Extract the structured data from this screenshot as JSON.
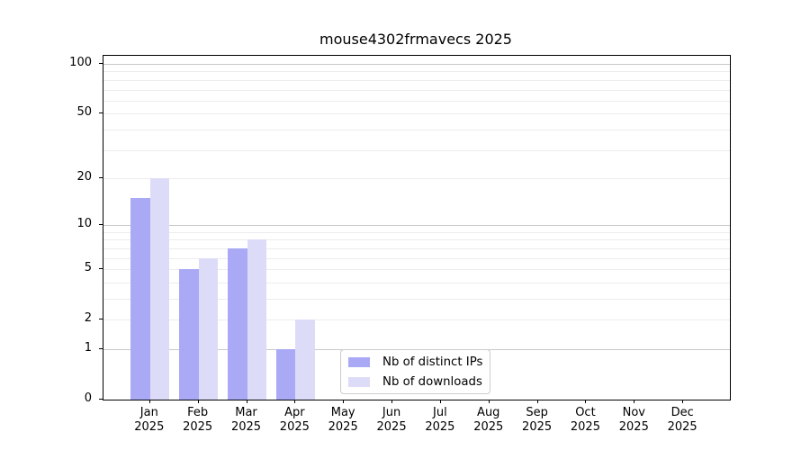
{
  "chart_data": {
    "type": "bar",
    "title": "mouse4302frmavecs 2025",
    "categories": [
      "Jan",
      "Feb",
      "Mar",
      "Apr",
      "May",
      "Jun",
      "Jul",
      "Aug",
      "Sep",
      "Oct",
      "Nov",
      "Dec"
    ],
    "year_label": "2025",
    "series": [
      {
        "name": "Nb of distinct IPs",
        "color": "#a9a9f5",
        "values": [
          15,
          5,
          7,
          1,
          0,
          0,
          0,
          0,
          0,
          0,
          0,
          0
        ]
      },
      {
        "name": "Nb of downloads",
        "color": "#dcdcf8",
        "values": [
          20,
          6,
          8,
          2,
          0,
          0,
          0,
          0,
          0,
          0,
          0,
          0
        ]
      }
    ],
    "xlabel": "",
    "ylabel": "",
    "yscale": "log1p",
    "ylim": [
      0,
      112
    ],
    "yticks": [
      0,
      1,
      2,
      5,
      10,
      20,
      50,
      100
    ],
    "ytick_labels": [
      "0",
      "1",
      "2",
      "5",
      "10",
      "20",
      "50",
      "100"
    ],
    "minor_gridlines": [
      2,
      3,
      4,
      5,
      6,
      7,
      8,
      9,
      20,
      30,
      40,
      50,
      60,
      70,
      80,
      90
    ],
    "major_gridlines": [
      1,
      10,
      100
    ],
    "grid": true,
    "legend_position": "inside-bottom-center"
  },
  "colors": {
    "bar_distinct_ips": "#a9a9f5",
    "bar_downloads": "#dcdcf8",
    "grid_minor": "#ececec",
    "grid_major": "#c9c9c9",
    "axis": "#000000",
    "legend_border": "#cccccc",
    "background": "#ffffff"
  }
}
